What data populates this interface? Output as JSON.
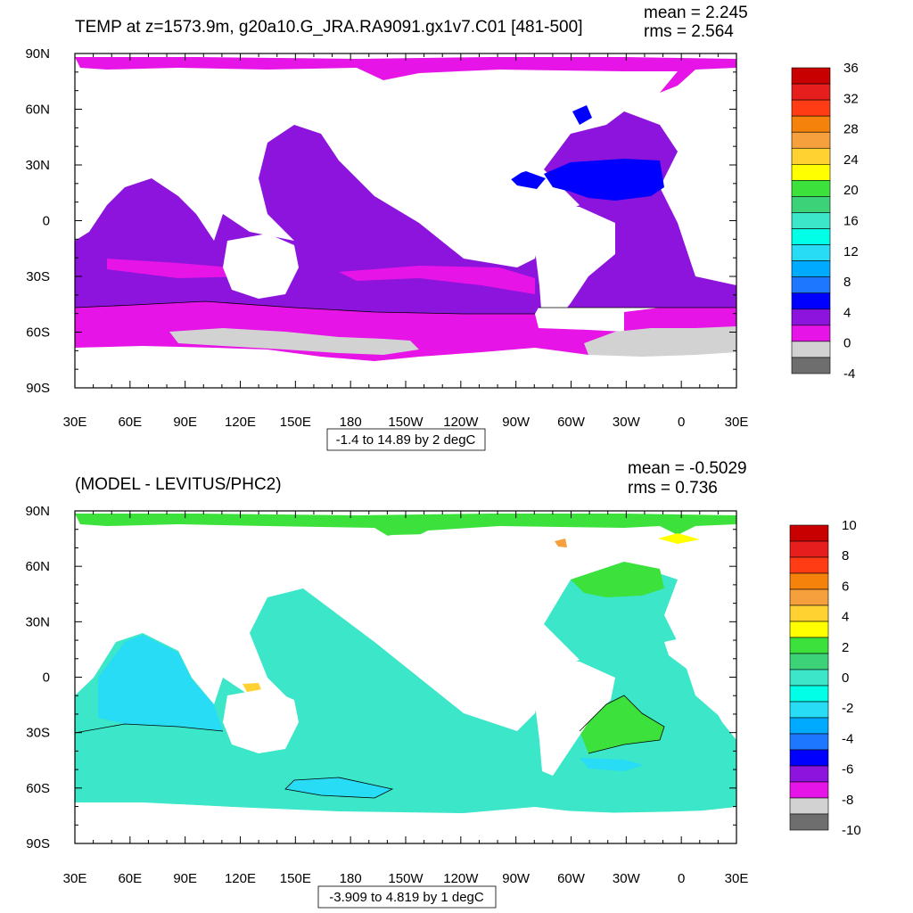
{
  "panels": [
    {
      "title": "TEMP at z=1573.9m, g20a10.G_JRA.RA9091.gx1v7.C01 [481-500]",
      "mean_label": "mean = 2.245",
      "rms_label": "rms = 2.564",
      "range_label": "-1.4 to 14.89 by 2 degC",
      "colorbar_labels": [
        "36",
        "32",
        "28",
        "24",
        "20",
        "16",
        "12",
        "8",
        "4",
        "0",
        "-4"
      ],
      "colorbar_colors": [
        "#c80000",
        "#e61e1e",
        "#ff3c14",
        "#f5820a",
        "#f5a03c",
        "#ffd232",
        "#ffff00",
        "#3ce13c",
        "#3cd278",
        "#3ce6c8",
        "#00ffe6",
        "#28dcf5",
        "#00aaff",
        "#1e78ff",
        "#0000ff",
        "#8c14dc",
        "#e614e6",
        "#d2d2d2",
        "#6e6e6e"
      ],
      "land_fill": "#ffffff"
    },
    {
      "title": "(MODEL - LEVITUS/PHC2)",
      "mean_label": "mean = -0.5029",
      "rms_label": "rms = 0.736",
      "range_label": "-3.909 to 4.819 by 1 degC",
      "colorbar_labels": [
        "10",
        "8",
        "6",
        "4",
        "2",
        "0",
        "-2",
        "-4",
        "-6",
        "-8",
        "-10"
      ],
      "colorbar_colors": [
        "#c80000",
        "#e61e1e",
        "#ff3c14",
        "#f5820a",
        "#f5a03c",
        "#ffd232",
        "#ffff00",
        "#3ce13c",
        "#3cd278",
        "#3ce6c8",
        "#00ffe6",
        "#28dcf5",
        "#00aaff",
        "#1e78ff",
        "#0000ff",
        "#8c14dc",
        "#e614e6",
        "#d2d2d2",
        "#6e6e6e"
      ],
      "land_fill": "#ffffff"
    }
  ],
  "axes": {
    "lat_labels": [
      "90N",
      "60N",
      "30N",
      "0",
      "30S",
      "60S",
      "90S"
    ],
    "lon_labels": [
      "30E",
      "60E",
      "90E",
      "120E",
      "150E",
      "180",
      "150W",
      "120W",
      "90W",
      "60W",
      "30W",
      "0",
      "30E"
    ]
  },
  "map_colors": {
    "top_main": "#8c14dc",
    "top_south": "#e614e6",
    "top_north": "#e614e6",
    "top_atlantic": "#0000ff",
    "top_ice": "#d2d2d2",
    "bot_main": "#3ce6c8",
    "bot_arctic": "#3ce13c",
    "bot_indian": "#28dcf5",
    "bot_atl_green": "#3ce13c"
  }
}
